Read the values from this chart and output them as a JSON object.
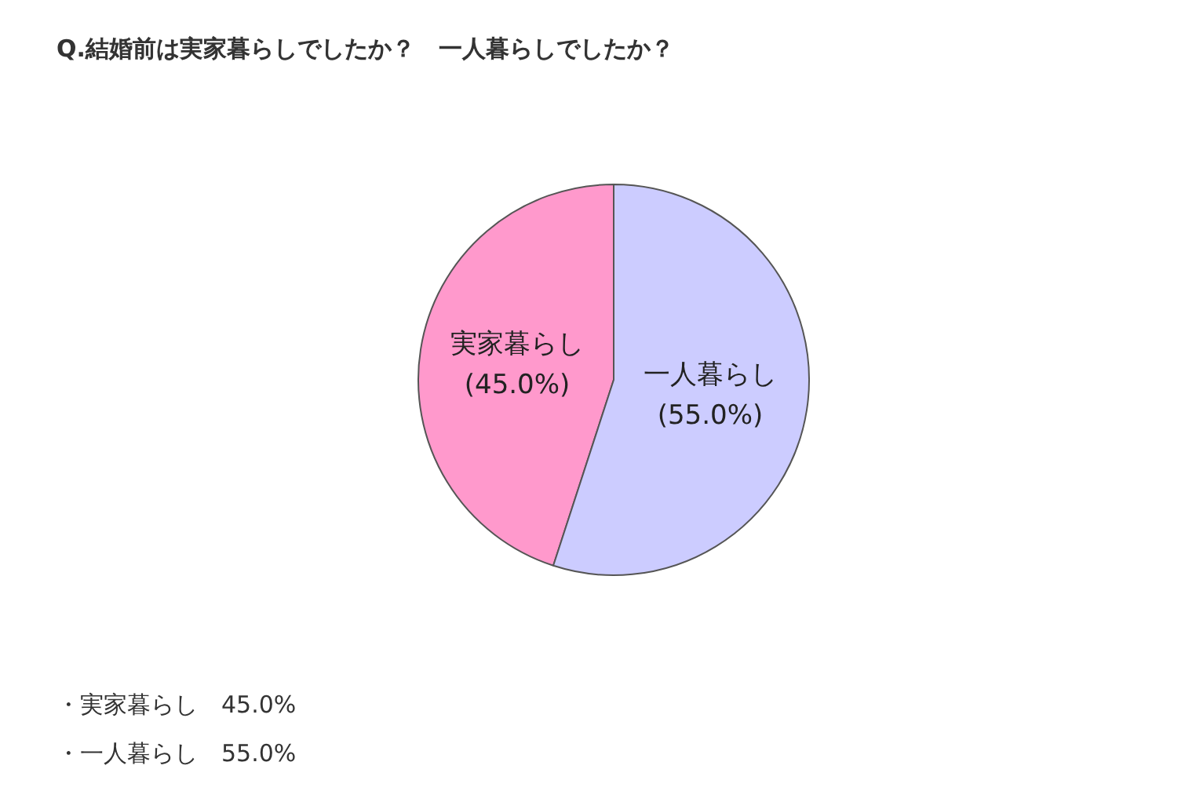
{
  "chart_data": {
    "type": "pie",
    "title": "Q.結婚前は実家暮らしでしたか？　一人暮らしでしたか？",
    "categories": [
      "実家暮らし",
      "一人暮らし"
    ],
    "values": [
      45,
      55
    ],
    "colors": [
      "#ff99cc",
      "#ccccff"
    ],
    "value_labels": [
      "(45.0%)",
      "(55.0%)"
    ],
    "annotations": [
      "・実家暮らし　45.0%",
      "・一人暮らし　55.0%"
    ],
    "legend": false
  }
}
